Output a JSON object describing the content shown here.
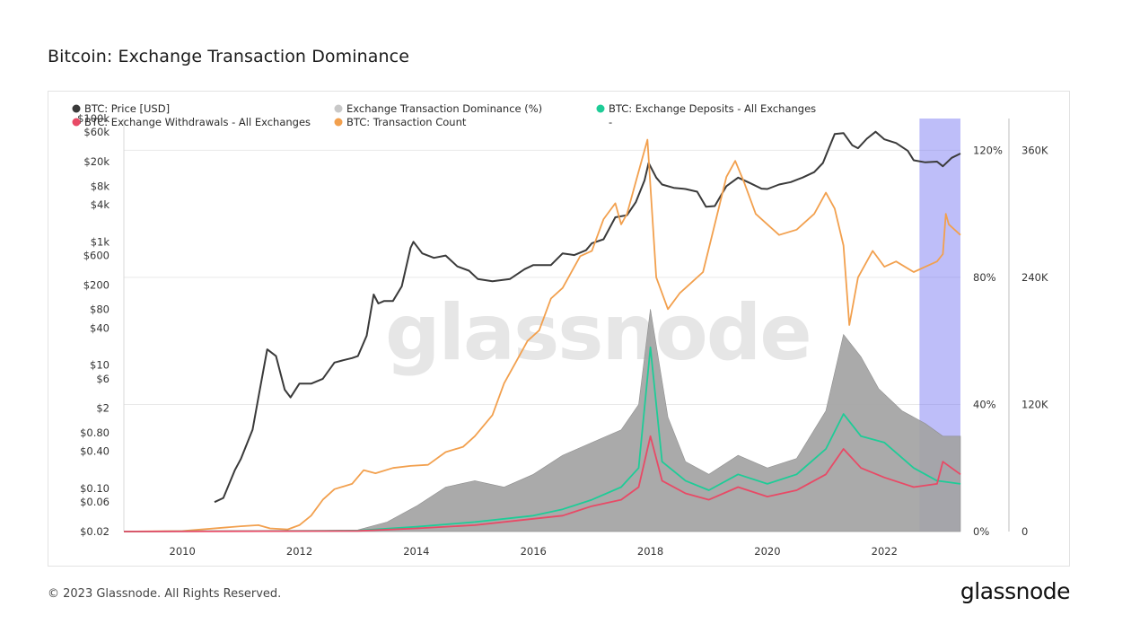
{
  "title": "Bitcoin: Exchange Transaction Dominance",
  "footer": {
    "copyright": "© 2023 Glassnode. All Rights Reserved.",
    "logo": "glassnode"
  },
  "watermark": "glassnode",
  "chart_data": {
    "type": "line",
    "title": "Bitcoin: Exchange Transaction Dominance",
    "x_range": [
      2009,
      2023.3
    ],
    "x_ticks": [
      "2010",
      "2012",
      "2014",
      "2016",
      "2018",
      "2020",
      "2022"
    ],
    "x_tick_values": [
      2010,
      2012,
      2014,
      2016,
      2018,
      2020,
      2022
    ],
    "highlight_range": [
      2022.6,
      2023.3
    ],
    "left_axis": {
      "scale": "log",
      "range": [
        0.02,
        100000
      ],
      "ticks": [
        "$100k",
        "$60k",
        "$20k",
        "$8k",
        "$4k",
        "$1k",
        "$600",
        "$200",
        "$80",
        "$40",
        "$10",
        "$6",
        "$2",
        "$0.80",
        "$0.40",
        "$0.10",
        "$0.06",
        "$0.02"
      ],
      "tick_values": [
        100000,
        60000,
        20000,
        8000,
        4000,
        1000,
        600,
        200,
        80,
        40,
        10,
        6,
        2,
        0.8,
        0.4,
        0.1,
        0.06,
        0.02
      ]
    },
    "pct_axis": {
      "range": [
        0,
        130
      ],
      "ticks": [
        "120%",
        "80%",
        "40%",
        "0%"
      ],
      "tick_values": [
        120,
        80,
        40,
        0
      ]
    },
    "count_axis": {
      "range": [
        0,
        390000
      ],
      "ticks": [
        "360K",
        "240K",
        "120K",
        "0"
      ],
      "tick_values": [
        360000,
        240000,
        120000,
        0
      ]
    },
    "legend": [
      {
        "label": "BTC: Price [USD]",
        "color": "#3a3a3a"
      },
      {
        "label": "Exchange Transaction Dominance (%)",
        "color": "#c8c8c8"
      },
      {
        "label": "BTC: Exchange Deposits - All Exchanges",
        "color": "#1ecc97"
      },
      {
        "label": "BTC: Exchange Withdrawals - All Exchanges",
        "color": "#e84a66"
      },
      {
        "label": "BTC: Transaction Count",
        "color": "#f2a04e"
      },
      {
        "label": "-",
        "color": "#ffffff"
      }
    ],
    "series": [
      {
        "name": "BTC: Price [USD]",
        "axis": "left",
        "color": "#3a3a3a",
        "x": [
          2010.55,
          2010.7,
          2010.9,
          2011.0,
          2011.2,
          2011.3,
          2011.45,
          2011.6,
          2011.75,
          2011.85,
          2012.0,
          2012.2,
          2012.4,
          2012.6,
          2012.75,
          2012.9,
          2013.0,
          2013.15,
          2013.27,
          2013.35,
          2013.45,
          2013.6,
          2013.75,
          2013.9,
          2013.95,
          2014.1,
          2014.3,
          2014.5,
          2014.7,
          2014.9,
          2015.05,
          2015.3,
          2015.6,
          2015.85,
          2016.0,
          2016.3,
          2016.5,
          2016.7,
          2016.9,
          2017.0,
          2017.2,
          2017.4,
          2017.6,
          2017.75,
          2017.9,
          2017.97,
          2018.1,
          2018.2,
          2018.4,
          2018.6,
          2018.8,
          2018.95,
          2019.1,
          2019.3,
          2019.5,
          2019.7,
          2019.9,
          2020.0,
          2020.2,
          2020.4,
          2020.6,
          2020.8,
          2020.95,
          2021.05,
          2021.15,
          2021.3,
          2021.45,
          2021.55,
          2021.7,
          2021.85,
          2022.0,
          2022.2,
          2022.4,
          2022.5,
          2022.7,
          2022.9,
          2023.0,
          2023.15,
          2023.3
        ],
        "values": [
          0.06,
          0.07,
          0.2,
          0.3,
          0.9,
          3,
          18,
          14,
          4,
          3,
          5,
          5,
          6,
          11,
          12,
          13,
          14,
          30,
          140,
          100,
          110,
          110,
          190,
          800,
          1000,
          650,
          550,
          600,
          400,
          340,
          250,
          230,
          250,
          360,
          420,
          420,
          650,
          610,
          730,
          950,
          1100,
          2500,
          2700,
          4400,
          10000,
          19000,
          11000,
          8500,
          7500,
          7200,
          6500,
          3700,
          3800,
          8000,
          11000,
          9000,
          7300,
          7200,
          8500,
          9300,
          11000,
          13500,
          19000,
          33000,
          56000,
          58000,
          37000,
          33000,
          47000,
          61000,
          46000,
          40000,
          30000,
          21000,
          19500,
          20000,
          16800,
          23000,
          27000
        ]
      },
      {
        "name": "BTC: Transaction Count",
        "axis": "count",
        "color": "#f2a04e",
        "x": [
          2009.0,
          2010.0,
          2011.0,
          2011.3,
          2011.5,
          2011.8,
          2012.0,
          2012.2,
          2012.4,
          2012.6,
          2012.9,
          2013.1,
          2013.3,
          2013.6,
          2013.9,
          2014.2,
          2014.5,
          2014.8,
          2015.0,
          2015.3,
          2015.5,
          2015.7,
          2015.9,
          2016.1,
          2016.3,
          2016.5,
          2016.8,
          2017.0,
          2017.2,
          2017.4,
          2017.5,
          2017.6,
          2017.8,
          2017.95,
          2018.1,
          2018.3,
          2018.5,
          2018.7,
          2018.9,
          2019.1,
          2019.3,
          2019.45,
          2019.6,
          2019.8,
          2020.0,
          2020.2,
          2020.5,
          2020.8,
          2021.0,
          2021.15,
          2021.3,
          2021.4,
          2021.55,
          2021.8,
          2022.0,
          2022.2,
          2022.5,
          2022.7,
          2022.9,
          2023.0,
          2023.05,
          2023.1,
          2023.2,
          2023.3
        ],
        "values": [
          0,
          500,
          5000,
          6000,
          3000,
          2000,
          6000,
          15000,
          30000,
          40000,
          45000,
          58000,
          55000,
          60000,
          62000,
          63000,
          75000,
          80000,
          90000,
          110000,
          140000,
          160000,
          180000,
          190000,
          220000,
          230000,
          260000,
          265000,
          295000,
          310000,
          290000,
          300000,
          340000,
          370000,
          240000,
          210000,
          225000,
          235000,
          245000,
          290000,
          335000,
          350000,
          330000,
          300000,
          290000,
          280000,
          285000,
          300000,
          320000,
          305000,
          270000,
          195000,
          240000,
          265000,
          250000,
          255000,
          245000,
          250000,
          255000,
          262000,
          300000,
          290000,
          285000,
          280000
        ]
      },
      {
        "name": "Exchange Transaction Dominance (%)",
        "axis": "pct",
        "color": "#a3a3a3",
        "x": [
          2009.0,
          2011.0,
          2012.0,
          2013.0,
          2013.5,
          2014.0,
          2014.5,
          2015.0,
          2015.5,
          2016.0,
          2016.5,
          2017.0,
          2017.5,
          2017.8,
          2018.0,
          2018.3,
          2018.6,
          2019.0,
          2019.5,
          2020.0,
          2020.5,
          2021.0,
          2021.3,
          2021.6,
          2021.9,
          2022.3,
          2022.7,
          2023.0,
          2023.3
        ],
        "values": [
          0,
          0,
          0.2,
          0.5,
          3,
          8,
          14,
          16,
          14,
          18,
          24,
          28,
          32,
          40,
          70,
          36,
          22,
          18,
          24,
          20,
          23,
          38,
          62,
          55,
          45,
          38,
          34,
          30,
          30
        ]
      },
      {
        "name": "BTC: Exchange Deposits - All Exchanges",
        "axis": "pct",
        "color": "#1ecc97",
        "x": [
          2009.0,
          2013.0,
          2014.0,
          2015.0,
          2016.0,
          2016.5,
          2017.0,
          2017.5,
          2017.8,
          2018.0,
          2018.2,
          2018.6,
          2019.0,
          2019.5,
          2020.0,
          2020.5,
          2021.0,
          2021.3,
          2021.6,
          2022.0,
          2022.5,
          2022.9,
          2023.3
        ],
        "values": [
          0,
          0.3,
          1.5,
          3,
          5,
          7,
          10,
          14,
          20,
          58,
          22,
          16,
          13,
          18,
          15,
          18,
          26,
          37,
          30,
          28,
          20,
          16,
          15
        ]
      },
      {
        "name": "BTC: Exchange Withdrawals - All Exchanges",
        "axis": "pct",
        "color": "#e84a66",
        "x": [
          2009.0,
          2013.0,
          2014.0,
          2015.0,
          2016.0,
          2016.5,
          2017.0,
          2017.5,
          2017.8,
          2018.0,
          2018.2,
          2018.6,
          2019.0,
          2019.5,
          2020.0,
          2020.5,
          2021.0,
          2021.3,
          2021.6,
          2022.0,
          2022.5,
          2022.9,
          2023.0,
          2023.3
        ],
        "values": [
          0,
          0.2,
          1,
          2,
          4,
          5,
          8,
          10,
          14,
          30,
          16,
          12,
          10,
          14,
          11,
          13,
          18,
          26,
          20,
          17,
          14,
          15,
          22,
          18
        ]
      }
    ]
  }
}
